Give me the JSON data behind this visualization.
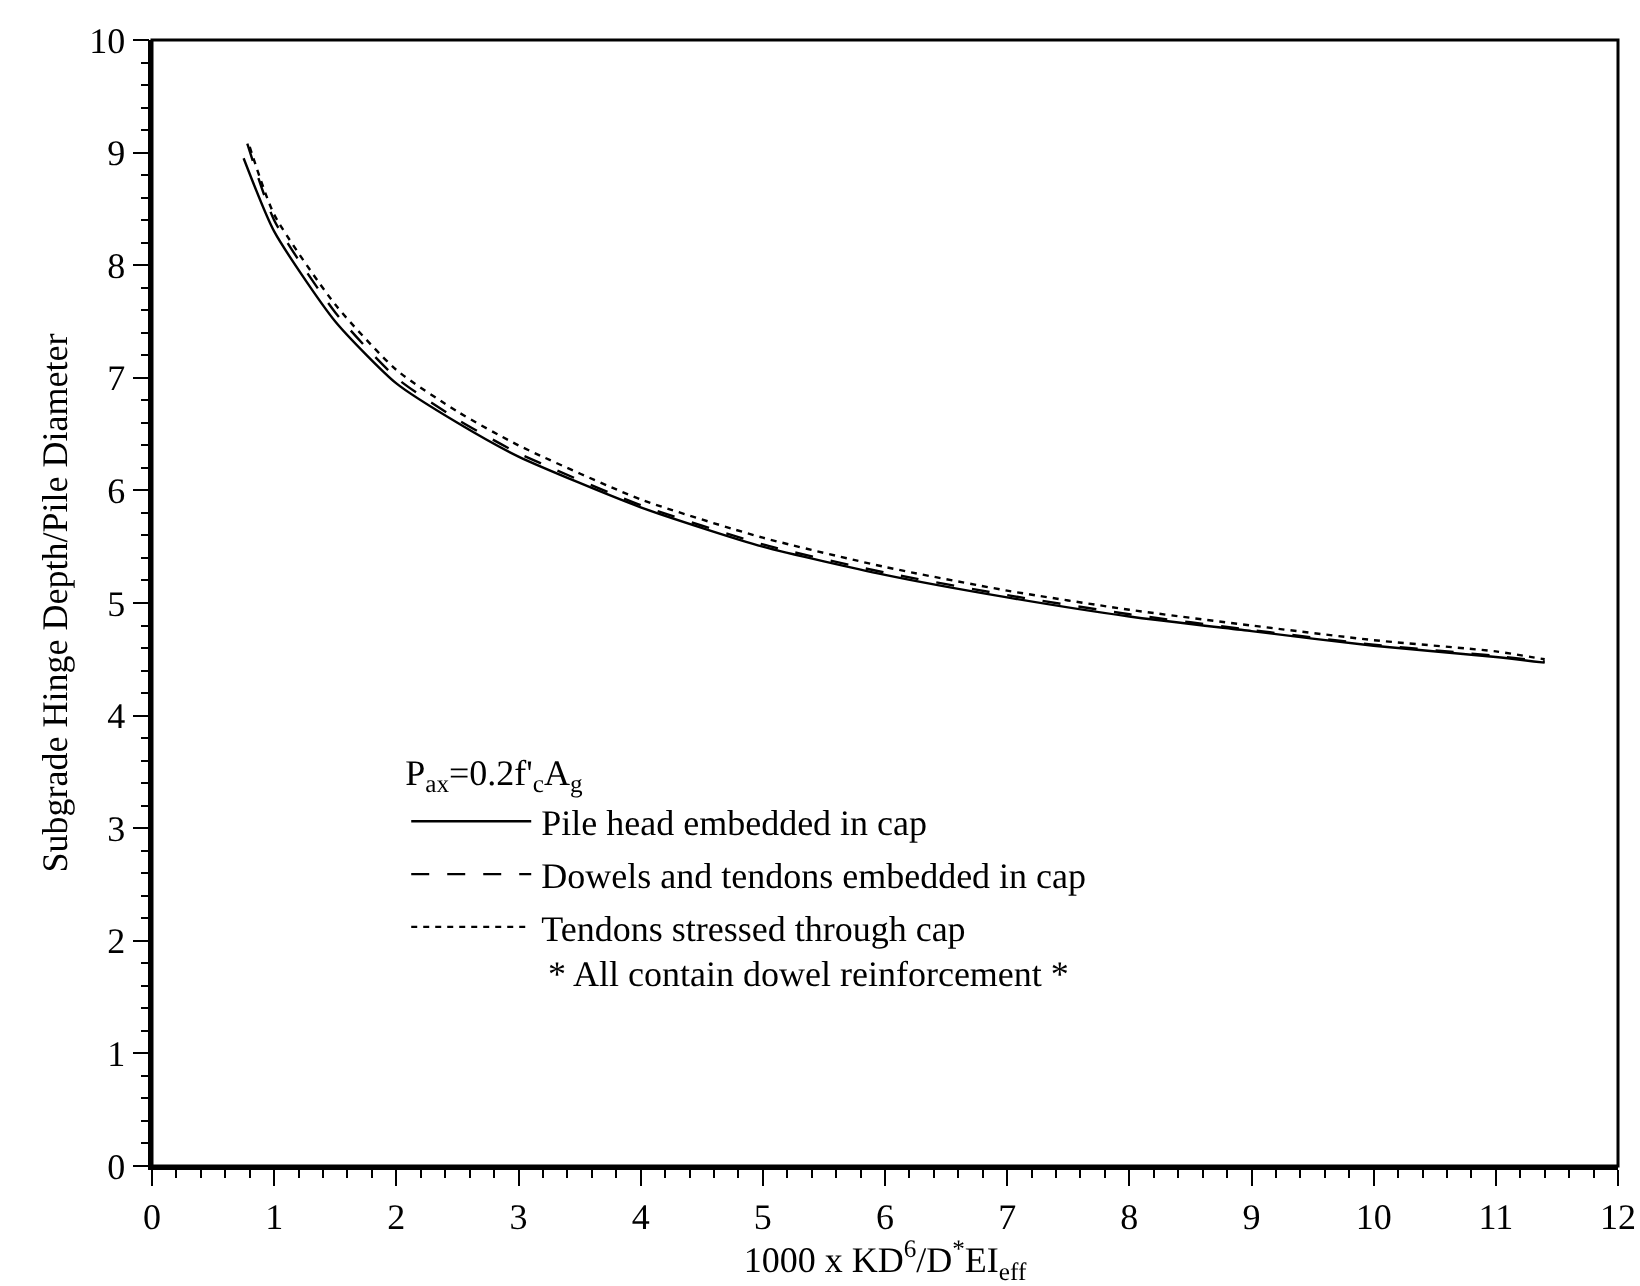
{
  "chart_data": {
    "type": "line",
    "xlabel": "1000 x KD$^{6}$/D$^{*}$EI$_{eff}$",
    "ylabel": "Subgrade Hinge Depth/Pile Diameter",
    "legend_title": "P$_{ax}$=0.2f'$_{c}$A$_{g}$",
    "annotations": [
      "* All contain dowel reinforcement *"
    ],
    "xlim": [
      0,
      12
    ],
    "xticks": [
      0,
      1,
      2,
      3,
      4,
      5,
      6,
      7,
      8,
      9,
      10,
      11,
      12
    ],
    "ylim": [
      0,
      10
    ],
    "yticks": [
      0,
      1,
      2,
      3,
      4,
      5,
      6,
      7,
      8,
      9,
      10
    ],
    "grid": false,
    "legend": "bottom",
    "marker": "none",
    "series": [
      {
        "name": "Pile head embedded in cap",
        "color": "#000000",
        "line_style": "solid",
        "x": [
          0.75,
          1,
          1.5,
          2,
          2.5,
          3,
          4,
          5,
          6,
          7,
          8,
          9,
          10,
          11,
          11.4
        ],
        "values": [
          8.95,
          8.3,
          7.5,
          6.95,
          6.6,
          6.3,
          5.85,
          5.5,
          5.25,
          5.05,
          4.88,
          4.75,
          4.62,
          4.52,
          4.47
        ]
      },
      {
        "name": "Dowels and tendons embedded in cap",
        "color": "#000000",
        "line_style": "dashed",
        "x": [
          0.78,
          1,
          1.5,
          2,
          2.5,
          3,
          4,
          5,
          6,
          7,
          8,
          9,
          10,
          11,
          11.4
        ],
        "values": [
          9.08,
          8.4,
          7.58,
          7.0,
          6.63,
          6.33,
          5.87,
          5.52,
          5.27,
          5.07,
          4.9,
          4.76,
          4.63,
          4.53,
          4.48
        ]
      },
      {
        "name": "Tendons stressed through cap",
        "color": "#000000",
        "line_style": "dotted",
        "x": [
          0.8,
          1,
          1.5,
          2,
          2.5,
          3,
          4,
          5,
          6,
          7,
          8,
          9,
          10,
          11,
          11.4
        ],
        "values": [
          9.05,
          8.45,
          7.65,
          7.07,
          6.7,
          6.4,
          5.92,
          5.58,
          5.32,
          5.11,
          4.94,
          4.8,
          4.67,
          4.57,
          4.5
        ]
      }
    ]
  }
}
